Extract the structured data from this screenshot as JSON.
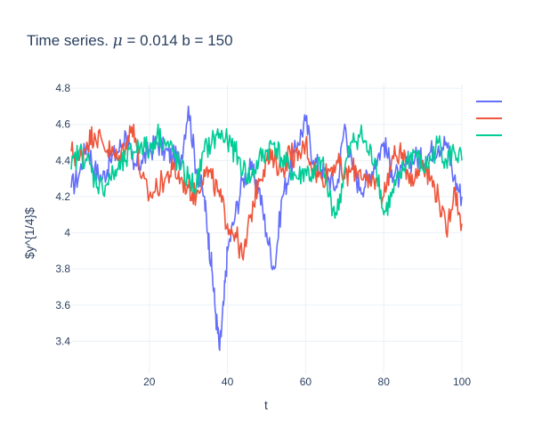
{
  "chart_data": {
    "type": "line",
    "title_parts": [
      "Time series. ",
      "μ",
      " = 0.014 b = 150"
    ],
    "xlabel": "t",
    "ylabel": "$y^{1/4}$",
    "xlim": [
      0,
      100
    ],
    "ylim": [
      3.22,
      4.82
    ],
    "xticks": [
      20,
      40,
      60,
      80,
      100
    ],
    "yticks": [
      3.4,
      3.6,
      3.8,
      4,
      4.2,
      4.4,
      4.6,
      4.8
    ],
    "grid": true,
    "legend": {
      "position": "top-right",
      "entries": [
        "",
        "",
        ""
      ]
    },
    "series": [
      {
        "color": "#636efa",
        "x": [
          0,
          2,
          4,
          6,
          8,
          10,
          12,
          14,
          16,
          18,
          20,
          22,
          24,
          26,
          28,
          30,
          32,
          34,
          35,
          36,
          37,
          38,
          39,
          40,
          42,
          44,
          46,
          48,
          50,
          52,
          54,
          56,
          58,
          60,
          62,
          64,
          66,
          68,
          70,
          72,
          74,
          76,
          78,
          80,
          82,
          84,
          86,
          88,
          90,
          92,
          94,
          96,
          98,
          100
        ],
        "y": [
          4.25,
          4.32,
          4.5,
          4.35,
          4.3,
          4.4,
          4.45,
          4.55,
          4.35,
          4.4,
          4.45,
          4.5,
          4.45,
          4.42,
          4.4,
          4.7,
          4.35,
          4.2,
          4.0,
          3.8,
          3.55,
          3.35,
          3.6,
          3.9,
          4.1,
          4.3,
          4.35,
          4.25,
          4.0,
          3.8,
          4.2,
          4.35,
          4.5,
          4.62,
          4.4,
          4.35,
          4.3,
          4.25,
          4.6,
          4.35,
          4.25,
          4.3,
          4.4,
          4.5,
          4.35,
          4.3,
          4.38,
          4.42,
          4.4,
          4.45,
          4.48,
          4.5,
          4.3,
          4.2
        ]
      },
      {
        "color": "#ef553b",
        "x": [
          0,
          2,
          4,
          6,
          8,
          10,
          12,
          14,
          16,
          18,
          20,
          22,
          24,
          26,
          28,
          30,
          32,
          34,
          36,
          38,
          40,
          42,
          44,
          46,
          48,
          50,
          52,
          54,
          56,
          58,
          60,
          62,
          64,
          66,
          68,
          70,
          72,
          74,
          76,
          78,
          80,
          82,
          84,
          86,
          88,
          90,
          92,
          94,
          96,
          98,
          100
        ],
        "y": [
          4.45,
          4.4,
          4.5,
          4.55,
          4.5,
          4.45,
          4.4,
          4.5,
          4.6,
          4.3,
          4.2,
          4.25,
          4.3,
          4.35,
          4.3,
          4.25,
          4.2,
          4.35,
          4.3,
          4.2,
          4.05,
          4.0,
          3.85,
          4.1,
          4.3,
          4.4,
          4.4,
          4.35,
          4.45,
          4.4,
          4.5,
          4.35,
          4.3,
          4.35,
          4.4,
          4.3,
          4.35,
          4.35,
          4.25,
          4.3,
          4.2,
          4.4,
          4.45,
          4.35,
          4.3,
          4.4,
          4.3,
          4.2,
          4.0,
          4.25,
          4.05
        ]
      },
      {
        "color": "#00cc96",
        "x": [
          0,
          2,
          4,
          6,
          8,
          10,
          12,
          14,
          16,
          18,
          20,
          22,
          24,
          26,
          28,
          30,
          32,
          34,
          36,
          38,
          40,
          42,
          44,
          46,
          48,
          50,
          52,
          54,
          56,
          58,
          60,
          62,
          64,
          66,
          68,
          70,
          72,
          74,
          76,
          78,
          80,
          82,
          84,
          86,
          88,
          90,
          92,
          94,
          96,
          98,
          100
        ],
        "y": [
          4.35,
          4.45,
          4.4,
          4.3,
          4.25,
          4.3,
          4.35,
          4.4,
          4.45,
          4.5,
          4.45,
          4.55,
          4.5,
          4.45,
          4.35,
          4.3,
          4.25,
          4.45,
          4.5,
          4.55,
          4.5,
          4.45,
          4.35,
          4.3,
          4.4,
          4.45,
          4.5,
          4.4,
          4.35,
          4.3,
          4.35,
          4.3,
          4.4,
          4.2,
          4.1,
          4.35,
          4.5,
          4.55,
          4.45,
          4.4,
          4.1,
          4.2,
          4.3,
          4.4,
          4.45,
          4.35,
          4.4,
          4.5,
          4.4,
          4.45,
          4.4
        ]
      }
    ]
  }
}
